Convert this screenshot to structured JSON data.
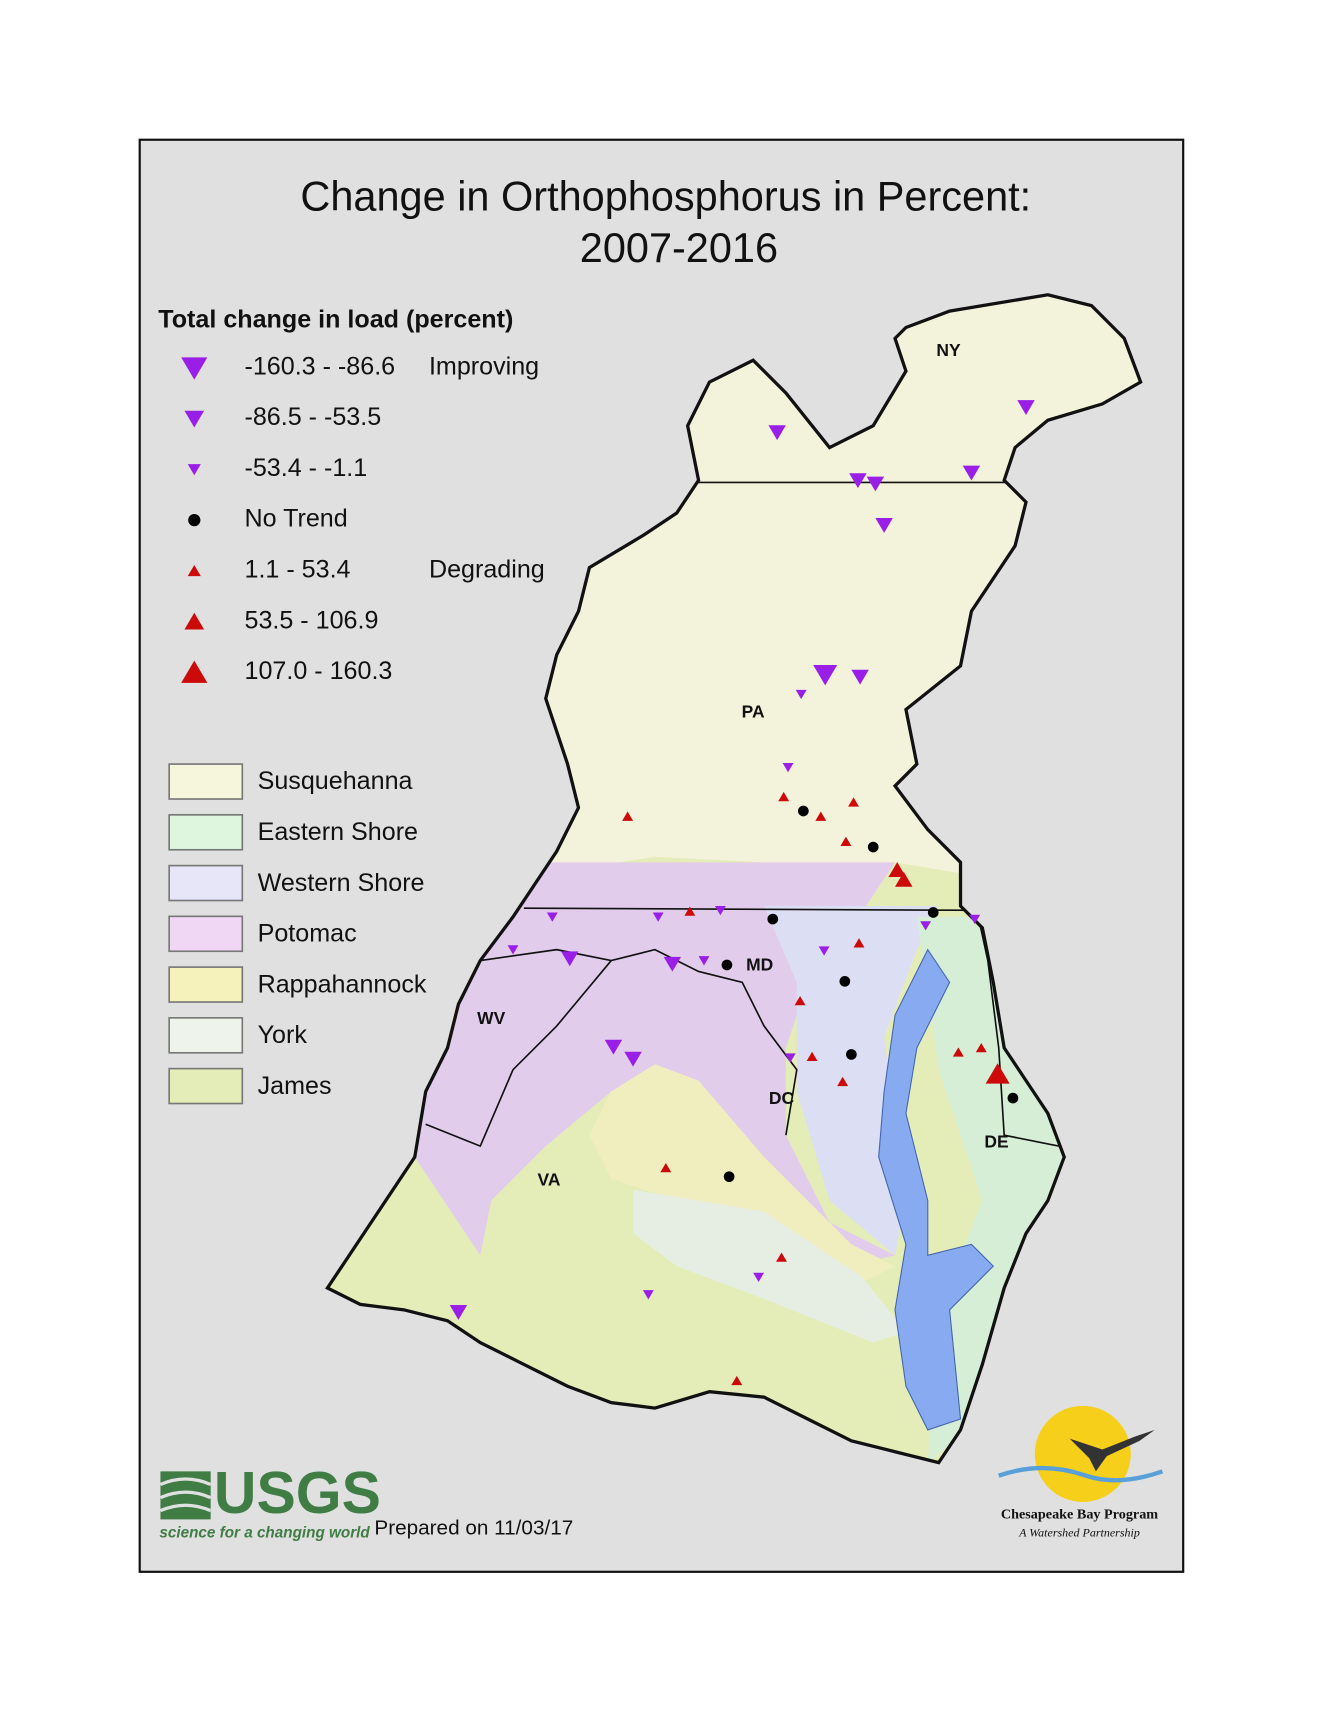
{
  "title": [
    "Change in Orthophosphorus in Percent:",
    "2007-2016"
  ],
  "legend": {
    "title": "Total change in load (percent)",
    "items": [
      {
        "label": "-160.3 - -86.6",
        "note": "Improving"
      },
      {
        "label": "-86.5 - -53.5"
      },
      {
        "label": "-53.4 - -1.1"
      },
      {
        "label": "No Trend"
      },
      {
        "label": "1.1 - 53.4",
        "note": "Degrading"
      },
      {
        "label": "53.5 - 106.9"
      },
      {
        "label": "107.0 - 160.3"
      }
    ]
  },
  "regions": [
    "Susquehanna",
    "Eastern Shore",
    "Western Shore",
    "Potomac",
    "Rappahannock",
    "York",
    "James"
  ],
  "state_labels": [
    "NY",
    "PA",
    "MD",
    "WV",
    "DC",
    "DE",
    "VA"
  ],
  "footer": {
    "prepared": "Prepared on 11/03/17",
    "usgs": {
      "name": "USGS",
      "tagline": "science for a changing world"
    },
    "cbp": {
      "name": "Chesapeake Bay Program",
      "tagline": "A Watershed Partnership"
    }
  }
}
